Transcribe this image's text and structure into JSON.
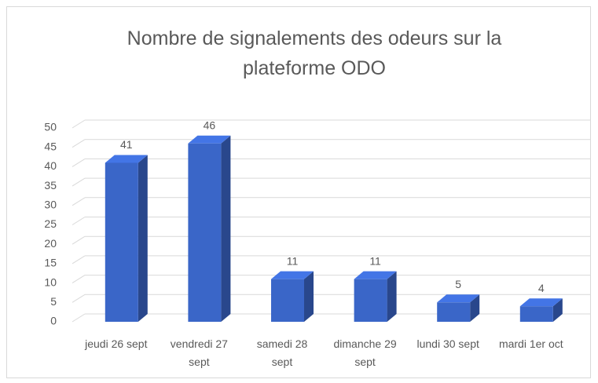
{
  "chart_data": {
    "type": "bar3d",
    "title": "Nombre de signalements des odeurs sur la plateforme ODO",
    "categories": [
      "jeudi 26 sept",
      "vendredi 27 sept",
      "samedi 28 sept",
      "dimanche 29 sept",
      "lundi 30 sept",
      "mardi 1er oct"
    ],
    "values": [
      41,
      46,
      11,
      11,
      5,
      4
    ],
    "color": "#3a66c8",
    "ylim": [
      0,
      50
    ],
    "yticks": [
      0,
      5,
      10,
      15,
      20,
      25,
      30,
      35,
      40,
      45,
      50
    ],
    "grid": true
  }
}
